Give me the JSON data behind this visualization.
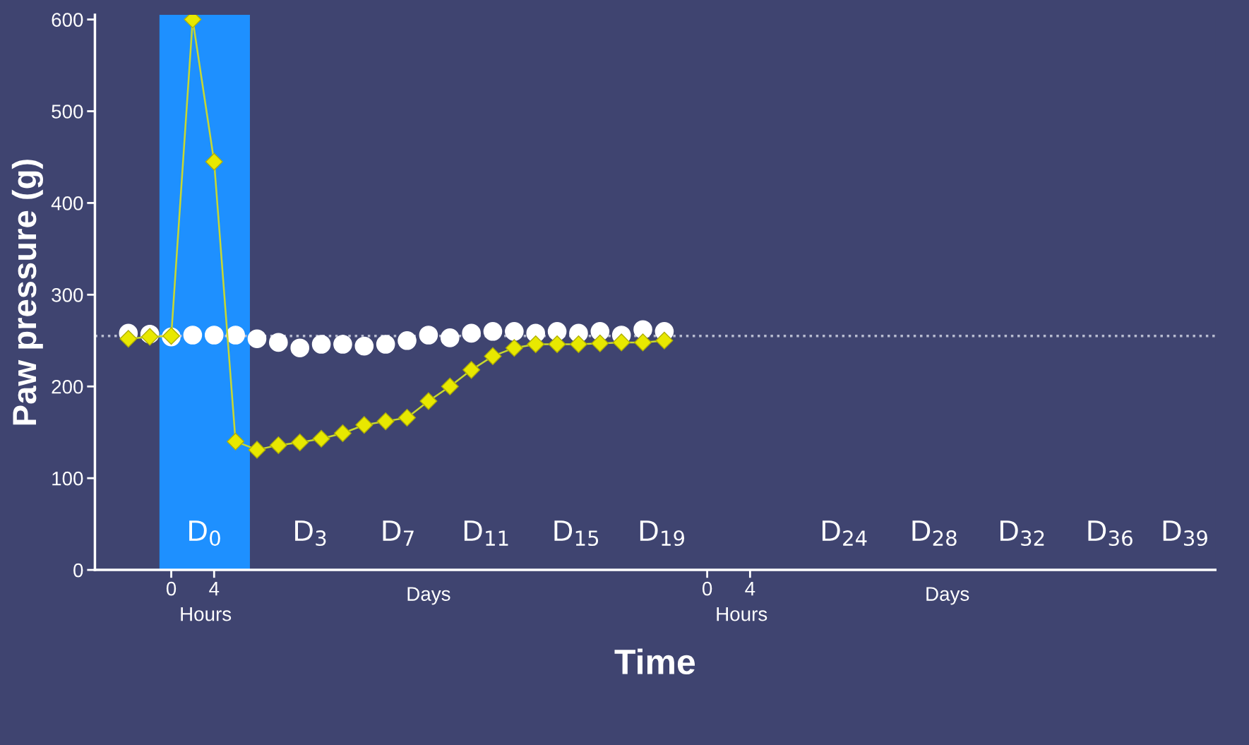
{
  "chart_data": {
    "type": "line",
    "xlabel": "Time",
    "ylabel": "Paw pressure (g)",
    "categories": [
      null,
      null,
      null,
      "0",
      null,
      "4",
      null,
      null,
      null,
      null,
      null,
      null,
      null,
      null,
      null,
      null,
      null,
      null,
      null,
      null,
      null,
      null,
      null,
      null,
      null,
      null,
      null,
      null,
      "0",
      null,
      "4",
      null,
      null,
      null,
      null,
      null,
      null,
      null,
      null,
      null,
      null,
      null,
      null,
      null,
      null,
      null,
      null,
      null,
      null,
      null,
      null,
      null
    ],
    "ylim": [
      0,
      605
    ],
    "yticks": [
      0,
      100,
      200,
      300,
      400,
      500,
      600
    ],
    "grid": false,
    "legend": false,
    "ref_lines": [
      {
        "axis": "y",
        "value": 255,
        "label": null,
        "color": "#b8bcd0",
        "line_style": "dotted"
      }
    ],
    "annotations": [
      "D$_{0}$",
      "D$_{3}$",
      "D$_{7}$",
      "D$_{11}$",
      "D$_{15}$",
      "D$_{19}$",
      "D$_{24}$",
      "D$_{28}$",
      "D$_{32}$",
      "D$_{36}$",
      "D$_{39}$",
      "Hours",
      "Days",
      "Hours",
      "Days"
    ],
    "series": [
      {
        "type": "scatter",
        "color": "#ffffff",
        "marker": "circle",
        "values": [
          null,
          258,
          257,
          254,
          256,
          256,
          256,
          252,
          248,
          242,
          246,
          246,
          244,
          246,
          250,
          256,
          253,
          258,
          260,
          260,
          258,
          260,
          258,
          260,
          256,
          262,
          260,
          null,
          null,
          null,
          null,
          null,
          null,
          null,
          null,
          null,
          null,
          null,
          null,
          null,
          null,
          null,
          null,
          null,
          null,
          null,
          null,
          null,
          null,
          null,
          null,
          null
        ]
      },
      {
        "color": "#e8e800",
        "marker": "diamond",
        "values": [
          null,
          252,
          254,
          255,
          600,
          445,
          140,
          131,
          136,
          139,
          143,
          149,
          158,
          162,
          166,
          184,
          200,
          218,
          233,
          242,
          246,
          246,
          246,
          247,
          248,
          248,
          250,
          null,
          null,
          null,
          null,
          null,
          null,
          null,
          null,
          null,
          null,
          null,
          null,
          null,
          null,
          null,
          null,
          null,
          null,
          null,
          null,
          null,
          null,
          null,
          null,
          null
        ]
      }
    ]
  }
}
